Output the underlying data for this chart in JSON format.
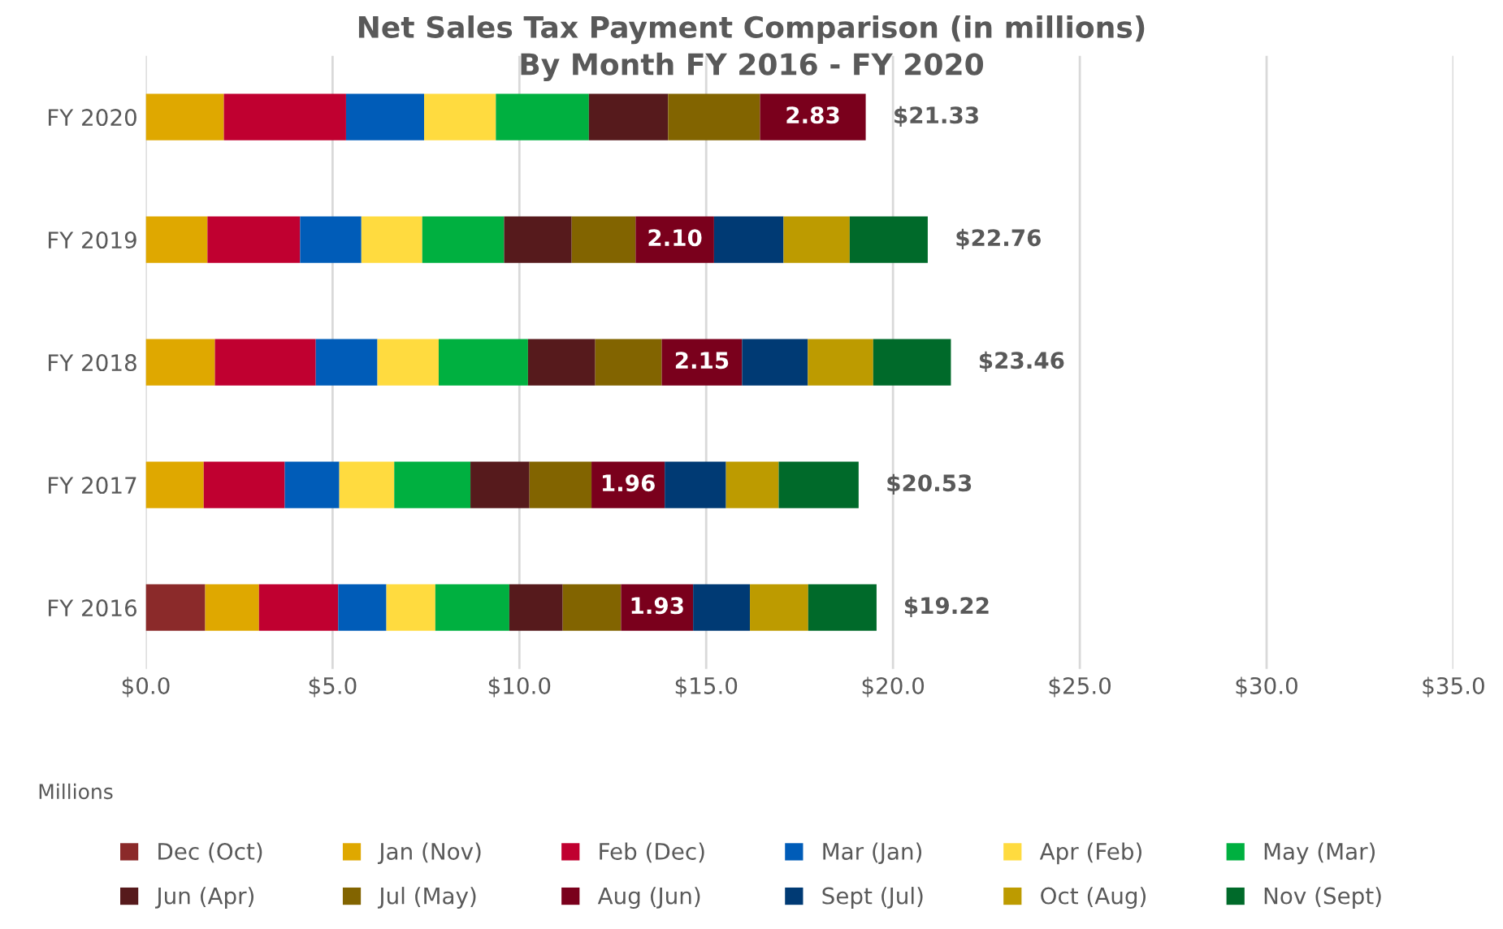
{
  "chart_data": {
    "type": "bar",
    "orientation": "horizontal",
    "stacked": true,
    "title": "Net Sales Tax Payment Comparison (in millions)",
    "subtitle": "By Month FY 2016 - FY 2020",
    "xlabel": "Millions",
    "categories": [
      "FY 2020",
      "FY 2019",
      "FY 2018",
      "FY 2017",
      "FY 2016"
    ],
    "series": [
      {
        "name": "Dec (Oct)",
        "color": "#8b2a2a",
        "values": [
          null,
          null,
          null,
          null,
          1.59
        ]
      },
      {
        "name": "Jan (Nov)",
        "color": "#dfa800",
        "values": [
          2.09,
          1.65,
          1.85,
          1.55,
          1.44
        ]
      },
      {
        "name": "Feb (Dec)",
        "color": "#c00030",
        "values": [
          3.27,
          2.48,
          2.7,
          2.17,
          2.12
        ]
      },
      {
        "name": "Mar (Jan)",
        "color": "#005cb8",
        "values": [
          2.09,
          1.64,
          1.65,
          1.46,
          1.29
        ]
      },
      {
        "name": "Apr (Feb)",
        "color": "#ffdb3f",
        "values": [
          1.92,
          1.63,
          1.64,
          1.47,
          1.31
        ]
      },
      {
        "name": "May (Mar)",
        "color": "#00b040",
        "values": [
          2.49,
          2.19,
          2.39,
          2.04,
          1.98
        ]
      },
      {
        "name": "Jun (Apr)",
        "color": "#561a1c",
        "values": [
          2.12,
          1.81,
          1.8,
          1.58,
          1.43
        ]
      },
      {
        "name": "Jul (May)",
        "color": "#826400",
        "values": [
          2.46,
          1.71,
          1.78,
          1.66,
          1.56
        ]
      },
      {
        "name": "Aug (Jun)",
        "color": "#7a001c",
        "values": [
          2.83,
          2.1,
          2.15,
          1.96,
          1.93
        ],
        "value_labels": [
          "2.83",
          "2.10",
          "2.15",
          "1.96",
          "1.93"
        ]
      },
      {
        "name": "Sept (Jul)",
        "color": "#003a74",
        "values": [
          null,
          1.86,
          1.76,
          1.64,
          1.52
        ]
      },
      {
        "name": "Oct (Aug)",
        "color": "#bd9b00",
        "values": [
          null,
          1.77,
          1.75,
          1.41,
          1.56
        ]
      },
      {
        "name": "Nov (Sept)",
        "color": "#006a2a",
        "values": [
          null,
          2.09,
          2.08,
          2.14,
          1.83
        ]
      }
    ],
    "annotations": [
      {
        "text": "$21.33",
        "x": 19.27,
        "y": "FY 2020"
      },
      {
        "text": "$22.76",
        "x": 20.93,
        "y": "FY 2019"
      },
      {
        "text": "$23.46",
        "x": 21.55,
        "y": "FY 2018"
      },
      {
        "text": "$20.53",
        "x": 19.08,
        "y": "FY 2017"
      },
      {
        "text": "$19.22",
        "x": 19.55,
        "y": "FY 2016"
      }
    ],
    "xlim": [
      0,
      35
    ],
    "xticks": [
      {
        "value": 0,
        "label": "$0.0"
      },
      {
        "value": 5,
        "label": "$5.0"
      },
      {
        "value": 10,
        "label": "$10.0"
      },
      {
        "value": 15,
        "label": "$15.0"
      },
      {
        "value": 20,
        "label": "$20.0"
      },
      {
        "value": 25,
        "label": "$25.0"
      },
      {
        "value": 30,
        "label": "$30.0"
      },
      {
        "value": 35,
        "label": "$35.0"
      }
    ],
    "grid": "x",
    "legend": "bottom"
  }
}
